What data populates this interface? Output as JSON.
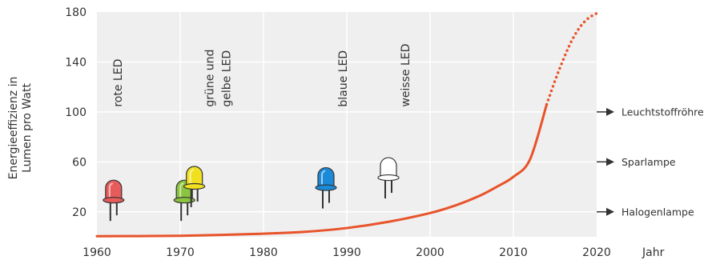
{
  "chart_data": {
    "type": "line",
    "ylabel_lines": [
      "Energieeffizienz in",
      "Lumen pro Watt"
    ],
    "xlabel": "Jahr",
    "xlim": [
      1960,
      2020
    ],
    "ylim": [
      0,
      180
    ],
    "xticks": [
      "1960",
      "1970",
      "1980",
      "1990",
      "2000",
      "2010",
      "2020"
    ],
    "yticks": [
      "20",
      "60",
      "100",
      "140",
      "180"
    ],
    "grid": true,
    "series": [
      {
        "x": [
          1960,
          1965,
          1970,
          1975,
          1980,
          1985,
          1990,
          1995,
          2000,
          2003,
          2006,
          2008,
          2010,
          2012,
          2014
        ],
        "y": [
          0.5,
          0.6,
          0.8,
          1.5,
          2.5,
          4,
          7,
          12,
          19,
          25,
          33,
          40,
          48,
          62,
          106
        ],
        "style": "solid",
        "color": "#e8532a"
      },
      {
        "x": [
          2014,
          2015,
          2016,
          2017,
          2018,
          2019,
          2020
        ],
        "y": [
          106,
          125,
          142,
          157,
          168,
          175,
          179
        ],
        "style": "dotted",
        "color": "#e8532a"
      }
    ],
    "annotations": [
      {
        "text": "rote LED",
        "x": 1963
      },
      {
        "text": "grüne und",
        "x": 1974
      },
      {
        "text": "gelbe LED",
        "x": 1976
      },
      {
        "text": "blaue LED",
        "x": 1990
      },
      {
        "text": "weisse LED",
        "x": 1997.5
      }
    ],
    "leds": [
      {
        "x": 1962,
        "color": "#e85b5b",
        "level": 30
      },
      {
        "x": 1970.5,
        "color": "#8bc43f",
        "level": 30
      },
      {
        "x": 1971.7,
        "color": "#f0e020",
        "level": 41
      },
      {
        "x": 1987.5,
        "color": "#1b8ad9",
        "level": 40
      },
      {
        "x": 1995,
        "color": "#ffffff",
        "level": 48
      }
    ],
    "references": [
      {
        "label": "Leuchtstoffröhre",
        "y": 100
      },
      {
        "label": "Sparlampe",
        "y": 60
      },
      {
        "label": "Halogenlampe",
        "y": 20
      }
    ],
    "colors": {
      "plot_bg": "#efefef",
      "grid": "#ffffff",
      "axis": "#333333"
    }
  }
}
